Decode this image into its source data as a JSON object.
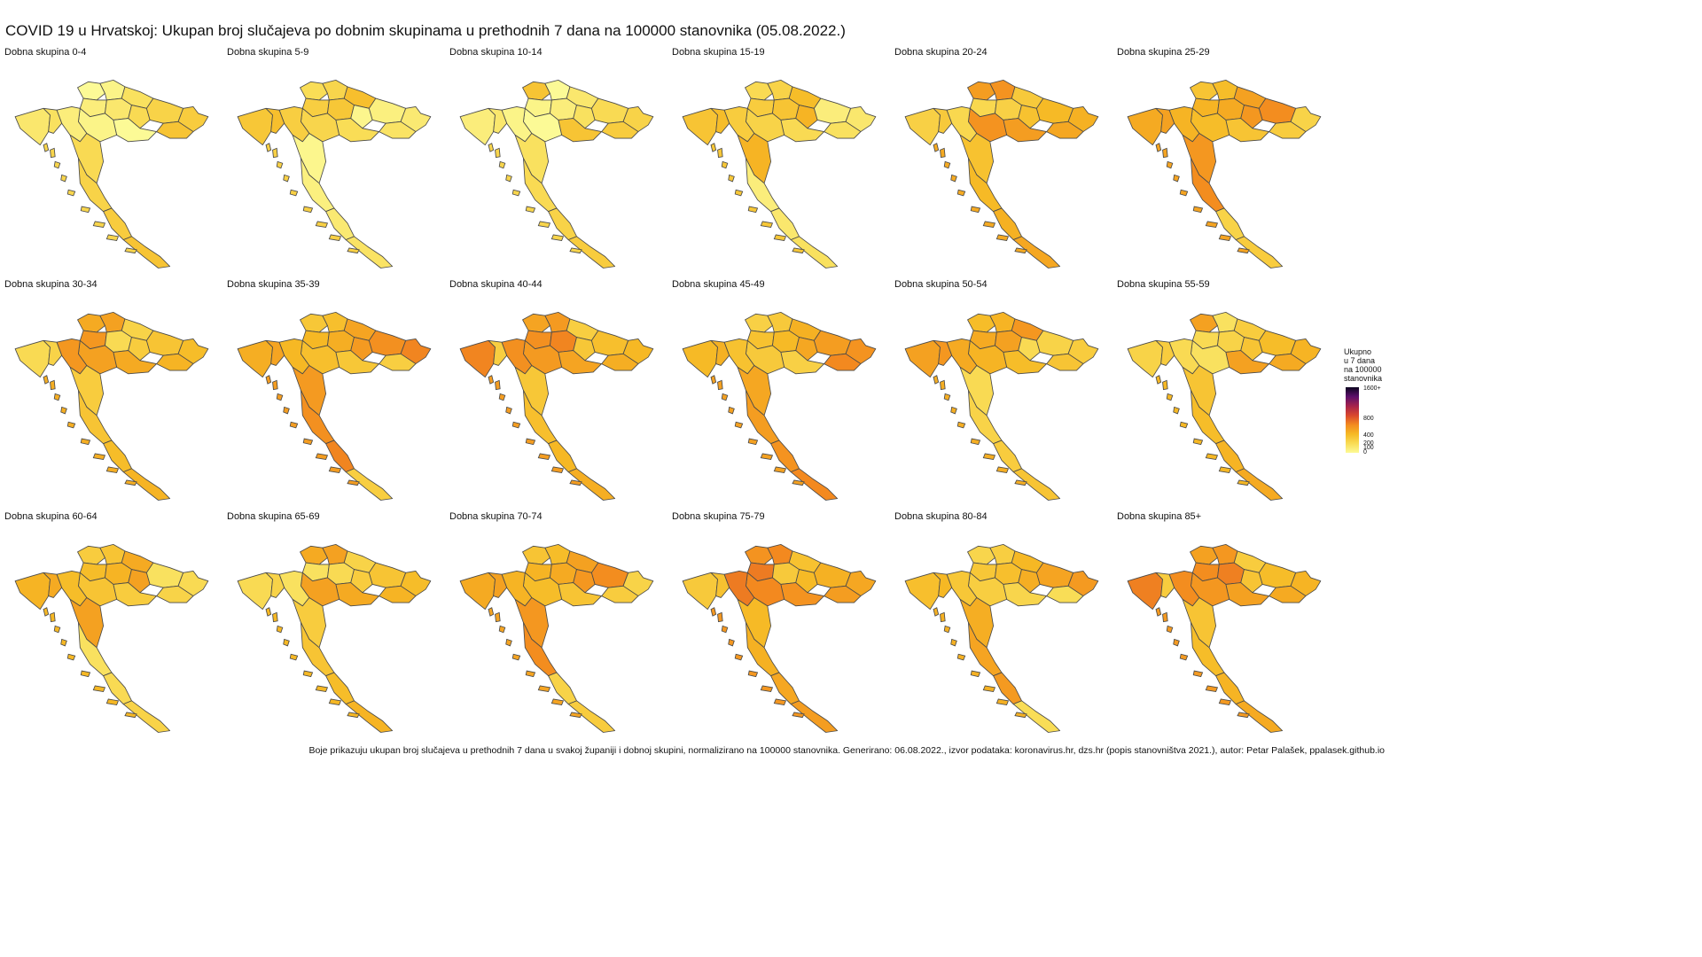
{
  "title": "COVID 19 u Hrvatskoj: Ukupan broj slučajeva po dobnim skupinama u prethodnih 7 dana na 100000 stanovnika (05.08.2022.)",
  "legend": {
    "title_lines": [
      "Ukupno",
      "u 7 dana",
      "na 100000",
      "stanovnika"
    ],
    "ticks": [
      {
        "label": "1600+",
        "value": 1600
      },
      {
        "label": "800",
        "value": 800
      },
      {
        "label": "400",
        "value": 400
      },
      {
        "label": "200",
        "value": 200
      },
      {
        "label": "100",
        "value": 100
      },
      {
        "label": "0",
        "value": 0
      }
    ],
    "colors": [
      "#fcfa96",
      "#f9dc55",
      "#f6b924",
      "#f38a1f",
      "#d9472d",
      "#a5224c",
      "#5c0f6a",
      "#0d0421"
    ]
  },
  "panels": [
    {
      "label": "Dobna skupina  0-4",
      "level": 0.12
    },
    {
      "label": "Dobna skupina  5-9",
      "level": 0.14
    },
    {
      "label": "Dobna skupina 10-14",
      "level": 0.12
    },
    {
      "label": "Dobna skupina 15-19",
      "level": 0.18
    },
    {
      "label": "Dobna skupina 20-24",
      "level": 0.28
    },
    {
      "label": "Dobna skupina 25-29",
      "level": 0.3
    },
    {
      "label": "Dobna skupina 30-34",
      "level": 0.27
    },
    {
      "label": "Dobna skupina 35-39",
      "level": 0.32
    },
    {
      "label": "Dobna skupina 40-44",
      "level": 0.32
    },
    {
      "label": "Dobna skupina 45-49",
      "level": 0.31
    },
    {
      "label": "Dobna skupina 50-54",
      "level": 0.27
    },
    {
      "label": "Dobna skupina 55-59",
      "level": 0.24
    },
    {
      "label": "Dobna skupina 60-64",
      "level": 0.24
    },
    {
      "label": "Dobna skupina 65-69",
      "level": 0.24
    },
    {
      "label": "Dobna skupina 70-74",
      "level": 0.3
    },
    {
      "label": "Dobna skupina 75-79",
      "level": 0.34
    },
    {
      "label": "Dobna skupina 80-84",
      "level": 0.26
    },
    {
      "label": "Dobna skupina 85+",
      "level": 0.33
    }
  ],
  "footer": "Boje prikazuju ukupan broj slučajeva u prethodnih 7 dana u svakoj županiji i dobnoj skupini, normalizirano na 100000 stanovnika. Generirano: 06.08.2022., izvor podataka: koronavirus.hr, dzs.hr (popis stanovništva 2021.), autor: Petar Palašek, ppalasek.github.io"
}
